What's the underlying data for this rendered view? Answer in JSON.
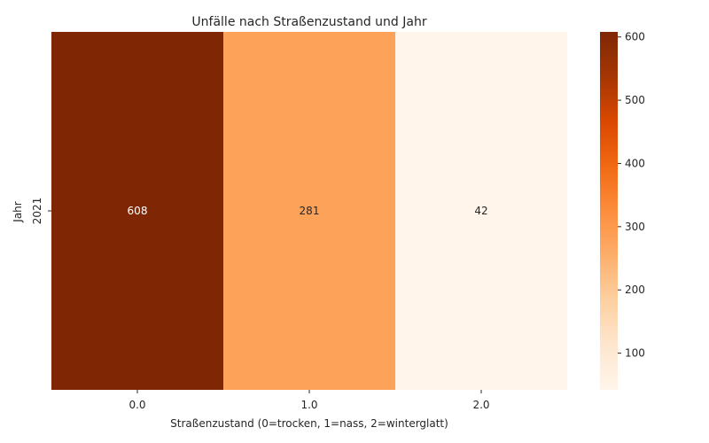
{
  "chart_data": {
    "type": "heatmap",
    "title": "Unfälle nach Straßenzustand und Jahr",
    "xlabel": "Straßenzustand (0=trocken, 1=nass, 2=winterglatt)",
    "ylabel": "Jahr",
    "x_categories": [
      "0.0",
      "1.0",
      "2.0"
    ],
    "y_categories": [
      "2021"
    ],
    "values": [
      [
        608,
        281,
        42
      ]
    ],
    "colormap": "Oranges",
    "vmin": 42,
    "vmax": 608,
    "colorbar_ticks": [
      "100",
      "200",
      "300",
      "400",
      "500",
      "600"
    ],
    "colorbar_tick_values": [
      100,
      200,
      300,
      400,
      500,
      600
    ],
    "colors": {
      "low": "#fff5eb",
      "high": "#7f2704"
    }
  }
}
